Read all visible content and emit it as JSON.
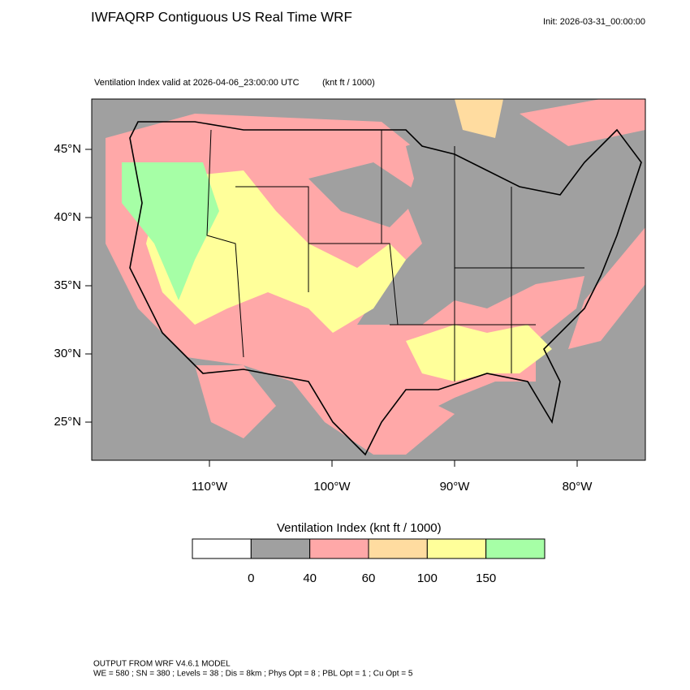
{
  "header": {
    "title": "IWFAQRP Contiguous US Real Time WRF",
    "init": "Init: 2026-03-31_00:00:00",
    "subtitle": "Ventilation Index valid at 2026-04-06_23:00:00 UTC",
    "units": "(knt ft / 1000)"
  },
  "map": {
    "lat_ticks": [
      {
        "value": 45,
        "label": "45°N"
      },
      {
        "value": 40,
        "label": "40°N"
      },
      {
        "value": 35,
        "label": "35°N"
      },
      {
        "value": 30,
        "label": "30°N"
      },
      {
        "value": 25,
        "label": "25°N"
      }
    ],
    "lon_ticks": [
      {
        "value": -110,
        "label": "110°W"
      },
      {
        "value": -100,
        "label": "100°W"
      },
      {
        "value": -90,
        "label": "90°W"
      },
      {
        "value": -80,
        "label": "80°W"
      }
    ]
  },
  "colorbar": {
    "title": "Ventilation Index  (knt ft / 1000)",
    "levels": [
      0,
      40,
      60,
      100,
      150
    ],
    "colors": [
      "#ffffff",
      "#a0a0a0",
      "#ffa8a8",
      "#ffdca0",
      "#ffff9a",
      "#a6ffa6"
    ]
  },
  "footer": {
    "line1": "OUTPUT FROM WRF V4.6.1 MODEL",
    "line2": "WE = 580 ; SN = 380 ; Levels = 38 ; Dis = 8km ; Phys Opt = 8 ; PBL Opt = 1 ; Cu Opt = 5"
  }
}
